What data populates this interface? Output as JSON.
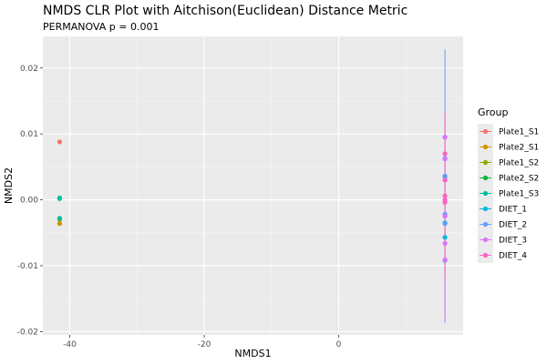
{
  "chart_data": {
    "type": "scatter",
    "title": "NMDS CLR Plot with Aitchison(Euclidean) Distance Metric",
    "subtitle": "PERMANOVA p = 0.001",
    "xlabel": "NMDS1",
    "ylabel": "NMDS2",
    "xlim": [
      -44,
      18.5
    ],
    "ylim": [
      -0.0205,
      0.0248
    ],
    "xticks": [
      -40,
      -20,
      0
    ],
    "xtick_labels": [
      "-40",
      "-20",
      "0"
    ],
    "yticks": [
      -0.02,
      -0.01,
      0.0,
      0.01,
      0.02
    ],
    "ytick_labels": [
      "-0.02",
      "-0.01",
      "0.00",
      "0.01",
      "0.02"
    ],
    "grid": true,
    "legend": {
      "title": "Group",
      "placement": "right"
    },
    "series": [
      {
        "name": "Plate1_S1",
        "color": "#F8766D",
        "points": [
          [
            -41.5,
            0.0088
          ]
        ]
      },
      {
        "name": "Plate2_S1",
        "color": "#D39200",
        "points": [
          [
            -41.5,
            -0.0036
          ]
        ]
      },
      {
        "name": "Plate1_S2",
        "color": "#93AA00",
        "points": [
          [
            -41.5,
            -0.003
          ]
        ]
      },
      {
        "name": "Plate2_S2",
        "color": "#00BA38",
        "points": [
          [
            -41.5,
            0.0002
          ]
        ]
      },
      {
        "name": "Plate1_S3",
        "color": "#00C19F",
        "points": [
          [
            -41.5,
            0.0003
          ],
          [
            -41.5,
            -0.0028
          ]
        ]
      },
      {
        "name": "DIET_1",
        "color": "#00B9E3",
        "points": [
          [
            15.8,
            0.0035
          ],
          [
            15.8,
            -0.0035
          ],
          [
            15.8,
            -0.0057
          ]
        ],
        "line": [
          -0.006,
          0.0045
        ]
      },
      {
        "name": "DIET_2",
        "color": "#619CFF",
        "points": [
          [
            15.8,
            0.0095
          ],
          [
            15.8,
            0.0063
          ],
          [
            15.8,
            0.0036
          ],
          [
            15.8,
            -0.0022
          ],
          [
            15.8,
            -0.0036
          ],
          [
            15.8,
            -0.0092
          ]
        ],
        "line": [
          -0.018,
          0.0228
        ]
      },
      {
        "name": "DIET_3",
        "color": "#DB72FB",
        "points": [
          [
            15.8,
            0.0095
          ],
          [
            15.8,
            0.0062
          ],
          [
            15.8,
            0.003
          ],
          [
            15.8,
            -0.0025
          ],
          [
            15.8,
            -0.0066
          ],
          [
            15.8,
            -0.0091
          ]
        ],
        "line": [
          -0.0187,
          0.0135
        ]
      },
      {
        "name": "DIET_4",
        "color": "#FF61C3",
        "points": [
          [
            15.8,
            0.007
          ],
          [
            15.8,
            0.003
          ],
          [
            15.8,
            0.0006
          ],
          [
            15.8,
            0.0
          ],
          [
            15.8,
            -0.0004
          ]
        ],
        "line": [
          -0.012,
          0.013
        ]
      }
    ]
  }
}
